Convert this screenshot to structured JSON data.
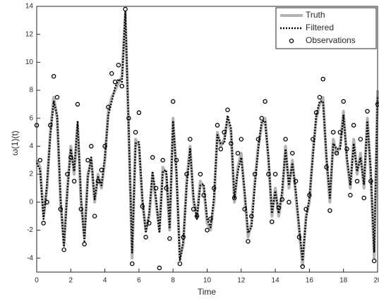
{
  "chart_data": {
    "type": "line",
    "xlabel": "Time",
    "ylabel": "ω(1)(t)",
    "x": [
      0,
      0.2,
      0.4,
      0.6,
      0.8,
      1,
      1.2,
      1.4,
      1.6,
      1.8,
      2,
      2.2,
      2.4,
      2.6,
      2.8,
      3,
      3.2,
      3.4,
      3.6,
      3.8,
      4,
      4.2,
      4.4,
      4.6,
      4.8,
      5,
      5.2,
      5.4,
      5.6,
      5.8,
      6,
      6.2,
      6.4,
      6.6,
      6.8,
      7,
      7.2,
      7.4,
      7.6,
      7.8,
      8,
      8.2,
      8.4,
      8.6,
      8.8,
      9,
      9.2,
      9.4,
      9.6,
      9.8,
      10,
      10.2,
      10.4,
      10.6,
      10.8,
      11,
      11.2,
      11.4,
      11.6,
      11.8,
      12,
      12.2,
      12.4,
      12.6,
      12.8,
      13,
      13.2,
      13.4,
      13.6,
      13.8,
      14,
      14.2,
      14.4,
      14.6,
      14.8,
      15,
      15.2,
      15.4,
      15.6,
      15.8,
      16,
      16.2,
      16.4,
      16.6,
      16.8,
      17,
      17.2,
      17.4,
      17.6,
      17.8,
      18,
      18.2,
      18.4,
      18.6,
      18.8,
      19,
      19.2,
      19.4,
      19.6,
      19.8,
      20
    ],
    "series": [
      {
        "name": "Truth",
        "color": "#b3b3b3",
        "style": "solid",
        "values": [
          3,
          2.5,
          -1,
          1,
          5,
          7.5,
          6,
          0,
          -3,
          1,
          4,
          2,
          5.5,
          0,
          -2.5,
          2,
          3,
          0,
          2,
          1,
          3,
          6.5,
          7.5,
          8,
          8.5,
          9,
          13.5,
          5,
          -4,
          4.5,
          4,
          0,
          -2,
          -1,
          2,
          0,
          -2,
          2.5,
          2,
          -2,
          6,
          2,
          -4,
          -3,
          1.5,
          4,
          0,
          -1,
          1.5,
          1,
          -1.5,
          -2,
          0,
          5,
          4,
          4.5,
          6,
          5,
          0,
          2.5,
          3.5,
          0.5,
          -2.5,
          -1.5,
          1.5,
          4,
          5.5,
          6,
          3,
          -1,
          1,
          -1,
          0.5,
          4,
          1,
          3,
          0.5,
          -2,
          -4.5,
          -1,
          0,
          3.5,
          6,
          7,
          7.5,
          3,
          0,
          4.5,
          3.5,
          4,
          6.5,
          3,
          1,
          4.5,
          2,
          3.5,
          1,
          6,
          2,
          -4,
          8
        ]
      },
      {
        "name": "Filtered",
        "color": "#000000",
        "style": "dotted",
        "values": [
          2.8,
          2.3,
          -1.2,
          1.2,
          4.8,
          7.2,
          6.2,
          0.3,
          -3.2,
          0.8,
          3.8,
          2.2,
          5.8,
          0.3,
          -2.8,
          1.8,
          3.2,
          0.2,
          1.8,
          1.2,
          3.2,
          6.2,
          7.2,
          8.2,
          8.8,
          8.6,
          13.6,
          5.2,
          -3.6,
          4.2,
          4.3,
          0.3,
          -2.2,
          -0.8,
          2.2,
          0.3,
          -2.2,
          2.2,
          2.3,
          -1.8,
          5.8,
          2.2,
          -4.2,
          -2.8,
          1.2,
          3.8,
          0.3,
          -1.2,
          1.2,
          1.3,
          -1.2,
          -1.8,
          0.3,
          4.8,
          4.2,
          4.2,
          6.2,
          5.3,
          0.3,
          2.2,
          3.2,
          0.8,
          -2.2,
          -1.8,
          1.2,
          3.8,
          5.8,
          5.8,
          3.2,
          -0.8,
          0.8,
          -0.8,
          0.8,
          3.8,
          1.2,
          2.8,
          0.8,
          -1.8,
          -4.2,
          -1.2,
          0.3,
          3.2,
          6.2,
          7.2,
          7.2,
          3.2,
          0.3,
          4.2,
          3.8,
          3.8,
          6.2,
          3.2,
          1.2,
          4.2,
          2.2,
          3.2,
          1.3,
          5.8,
          2.3,
          -3.6,
          7.6
        ]
      },
      {
        "name": "Observations",
        "color": "#000000",
        "style": "markers",
        "values": [
          5.5,
          3,
          -1.5,
          0,
          5.5,
          9,
          7.5,
          -0.5,
          -3.4,
          2,
          3.2,
          1.5,
          7,
          -0.5,
          -3,
          3,
          4,
          -1,
          1.5,
          2.3,
          4,
          6.8,
          9.2,
          8.6,
          9.8,
          8.3,
          13.8,
          6,
          -4.4,
          5,
          6.4,
          -0.3,
          -2.5,
          -1.5,
          3.2,
          1,
          -4.7,
          3,
          1,
          -2.6,
          7.2,
          3,
          -4.4,
          -2.5,
          2,
          4.5,
          -0.5,
          -1,
          2,
          0.5,
          -2,
          -1.2,
          1,
          5.5,
          3.8,
          5,
          6.6,
          4.2,
          0.3,
          3.5,
          4.5,
          -0.5,
          -2.8,
          -1,
          2,
          4.5,
          6,
          7.2,
          2,
          -1.4,
          2,
          -0.4,
          0.2,
          4.5,
          0,
          3.5,
          1.5,
          -2.5,
          -4.6,
          -0.5,
          0.5,
          4.5,
          6.4,
          7.5,
          8.8,
          2.5,
          -0.6,
          5,
          3.5,
          5,
          7.2,
          3.8,
          0.5,
          5.5,
          1.5,
          4.5,
          0.3,
          6.5,
          1.5,
          -4.2,
          7
        ]
      }
    ],
    "xlim": [
      0,
      20
    ],
    "xticks": [
      0,
      2,
      4,
      6,
      8,
      10,
      12,
      14,
      16,
      18,
      20
    ],
    "ylim": [
      -5,
      14
    ],
    "yticks": [
      -4,
      -2,
      0,
      2,
      4,
      6,
      8,
      10,
      12,
      14
    ],
    "grid": false,
    "legend": "upper right"
  }
}
